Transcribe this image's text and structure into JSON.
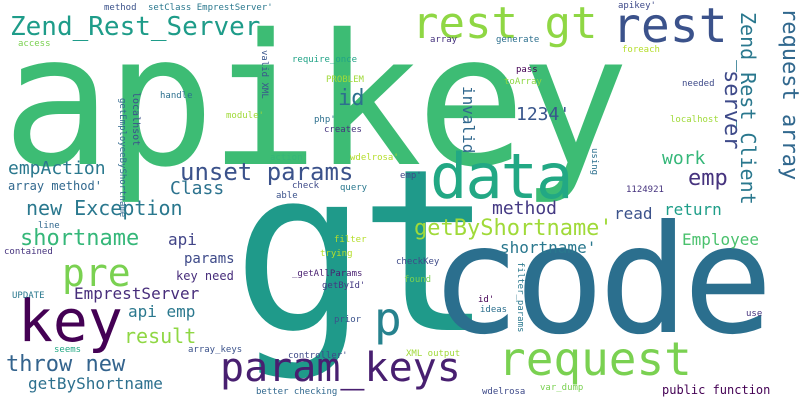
{
  "words": [
    {
      "text": "apikey",
      "color": "#3dbc74"
    },
    {
      "text": "gt",
      "color": "#1f9a8a"
    },
    {
      "text": "code",
      "color": "#2b6f8e"
    },
    {
      "text": "data",
      "color": "#22a884"
    },
    {
      "text": "rest gt",
      "color": "#8fd744"
    },
    {
      "text": "rest",
      "color": "#3b528b"
    },
    {
      "text": "Zend_Rest_Server",
      "color": "#1e9c89"
    },
    {
      "text": "request",
      "color": "#7ad151"
    },
    {
      "text": "param_keys",
      "color": "#481f70"
    },
    {
      "text": "key",
      "color": "#440154"
    },
    {
      "text": "pre",
      "color": "#7ad151"
    },
    {
      "text": "p",
      "color": "#26828e"
    },
    {
      "text": "request array",
      "color": "#31688e"
    },
    {
      "text": "Zend_Rest_Client",
      "color": "#2a788e"
    },
    {
      "text": "server",
      "color": "#3e4a89"
    },
    {
      "text": "id",
      "color": "#2d708e"
    },
    {
      "text": "unset params",
      "color": "#3b528b"
    },
    {
      "text": "getByShortname'",
      "color": "#a0da39"
    },
    {
      "text": "shortname",
      "color": "#35b779"
    },
    {
      "text": "new Exception",
      "color": "#2a788e"
    },
    {
      "text": "throw new",
      "color": "#33638d"
    },
    {
      "text": "result",
      "color": "#8fd744"
    },
    {
      "text": "emp",
      "color": "#46337e"
    },
    {
      "text": "work",
      "color": "#35b779"
    },
    {
      "text": "empAction",
      "color": "#2a788e"
    },
    {
      "text": "Class",
      "color": "#2c728e"
    },
    {
      "text": "method",
      "color": "#443983"
    },
    {
      "text": "invalid",
      "color": "#31688e"
    },
    {
      "text": "1234'",
      "color": "#39568c"
    },
    {
      "text": "EmprestServer",
      "color": "#472d7b"
    },
    {
      "text": "api emp",
      "color": "#2a788e"
    },
    {
      "text": "getByShortname",
      "color": "#2d708e"
    },
    {
      "text": "shortname'",
      "color": "#2a788e"
    },
    {
      "text": "Employee",
      "color": "#4ac16d"
    },
    {
      "text": "read",
      "color": "#3b528b"
    },
    {
      "text": "return",
      "color": "#1f9e89"
    },
    {
      "text": "api",
      "color": "#414487"
    },
    {
      "text": "params",
      "color": "#3e4a89"
    },
    {
      "text": "key need",
      "color": "#472d7b"
    },
    {
      "text": "array method'",
      "color": "#31688e"
    },
    {
      "text": "public function",
      "color": "#440154"
    },
    {
      "text": "method",
      "color": "#3b528b"
    },
    {
      "text": "setClass EmprestServer'",
      "color": "#2a788e"
    },
    {
      "text": "apikey'",
      "color": "#3e4a89"
    },
    {
      "text": "require_once",
      "color": "#20a386"
    },
    {
      "text": "access",
      "color": "#7ad151"
    },
    {
      "text": "array",
      "color": "#46337e"
    },
    {
      "text": "generate",
      "color": "#2d708e"
    },
    {
      "text": "foreach",
      "color": "#b5de2b"
    },
    {
      "text": "pass",
      "color": "#440154"
    },
    {
      "text": "toArray",
      "color": "#8fd744"
    },
    {
      "text": "needed",
      "color": "#3e4a89"
    },
    {
      "text": "PROBLEM",
      "color": "#a0da39"
    },
    {
      "text": "localhsot",
      "color": "#3b528b"
    },
    {
      "text": "handle",
      "color": "#2d708e"
    },
    {
      "text": "getEmployeeByShortname",
      "color": "#31688e"
    },
    {
      "text": "valid XML",
      "color": "#39568c"
    },
    {
      "text": "module'",
      "color": "#a0da39"
    },
    {
      "text": "php'",
      "color": "#2d708e"
    },
    {
      "text": "creates",
      "color": "#46337e"
    },
    {
      "text": "localhost",
      "color": "#a0da39"
    },
    {
      "text": "action'",
      "color": "#35b779"
    },
    {
      "text": "wdelrosa'",
      "color": "#b5de2b"
    },
    {
      "text": "using",
      "color": "#2d708e"
    },
    {
      "text": "check",
      "color": "#3e4a89"
    },
    {
      "text": "query",
      "color": "#2a788e"
    },
    {
      "text": "emp'",
      "color": "#3e4a89"
    },
    {
      "text": "able",
      "color": "#3b528b"
    },
    {
      "text": "1124921",
      "color": "#46337e"
    },
    {
      "text": "line",
      "color": "#31688e"
    },
    {
      "text": "contained",
      "color": "#46337e"
    },
    {
      "text": "UPDATE",
      "color": "#2a788e"
    },
    {
      "text": "filter",
      "color": "#b5de2b"
    },
    {
      "text": "trying",
      "color": "#b5de2b"
    },
    {
      "text": "_getAllParams",
      "color": "#481f70"
    },
    {
      "text": "checkKey",
      "color": "#3e4a89"
    },
    {
      "text": "getById'",
      "color": "#443983"
    },
    {
      "text": "found",
      "color": "#7ad151"
    },
    {
      "text": "id'",
      "color": "#440154"
    },
    {
      "text": "ideas",
      "color": "#2d708e"
    },
    {
      "text": "filter_params",
      "color": "#2a788e"
    },
    {
      "text": "use",
      "color": "#46337e"
    },
    {
      "text": "prior",
      "color": "#3b528b"
    },
    {
      "text": "seems",
      "color": "#22a884"
    },
    {
      "text": "array_keys",
      "color": "#3b528b"
    },
    {
      "text": "controller'",
      "color": "#3e4a89"
    },
    {
      "text": "XML output",
      "color": "#a0da39"
    },
    {
      "text": "var_dump",
      "color": "#7ad151"
    },
    {
      "text": "better checking",
      "color": "#31688e"
    },
    {
      "text": "wdelrosa",
      "color": "#3e4a89"
    }
  ]
}
